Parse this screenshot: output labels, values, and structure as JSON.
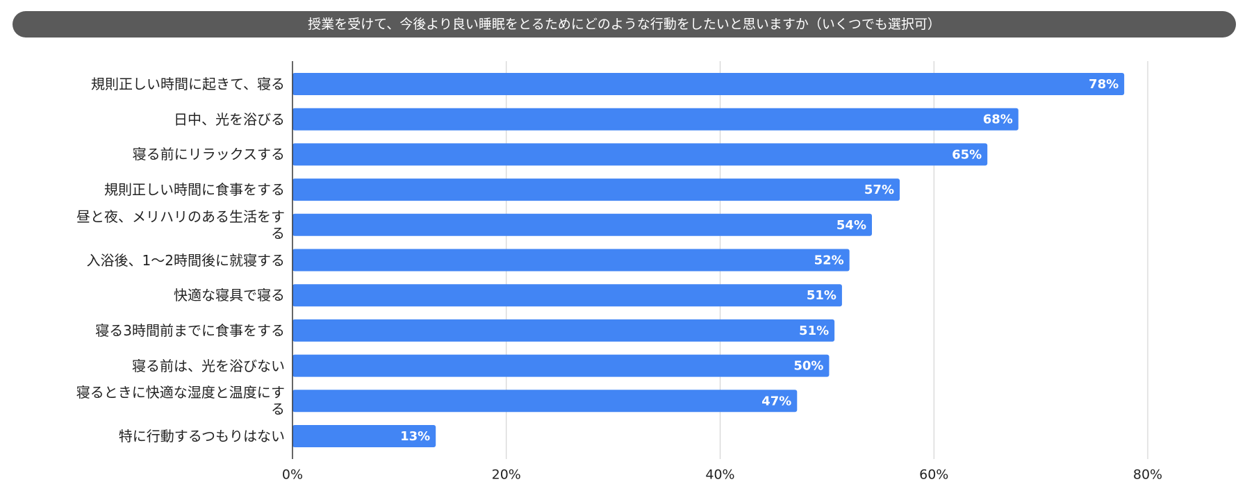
{
  "chart_data": {
    "type": "hbar",
    "title": "授業を受けて、今後より良い睡眠をとるためにどのような行動をしたいと思いますか（いくつでも選択可）",
    "categories": [
      "規則正しい時間に起きて、寝る",
      "日中、光を浴びる",
      "寝る前にリラックスする",
      "規則正しい時間に食事をする",
      "昼と夜、メリハリのある生活をする",
      "入浴後、1〜2時間後に就寝する",
      "快適な寝具で寝る",
      "寝る3時間前までに食事をする",
      "寝る前は、光を浴びない",
      "寝るときに快適な湿度と温度にする",
      "特に行動するつもりはない"
    ],
    "values": [
      77.8,
      67.9,
      65.0,
      56.8,
      54.2,
      52.1,
      51.4,
      50.7,
      50.2,
      47.2,
      13.4
    ],
    "value_labels": [
      "78%",
      "68%",
      "65%",
      "57%",
      "54%",
      "52%",
      "51%",
      "51%",
      "50%",
      "47%",
      "13%"
    ],
    "color": "#4285f4",
    "xlim": [
      0,
      80
    ],
    "xticks": [
      {
        "value": 0,
        "label": "0%"
      },
      {
        "value": 20,
        "label": "20%"
      },
      {
        "value": 40,
        "label": "40%"
      },
      {
        "value": 60,
        "label": "60%"
      },
      {
        "value": 80,
        "label": "80%"
      }
    ],
    "grid": true
  }
}
